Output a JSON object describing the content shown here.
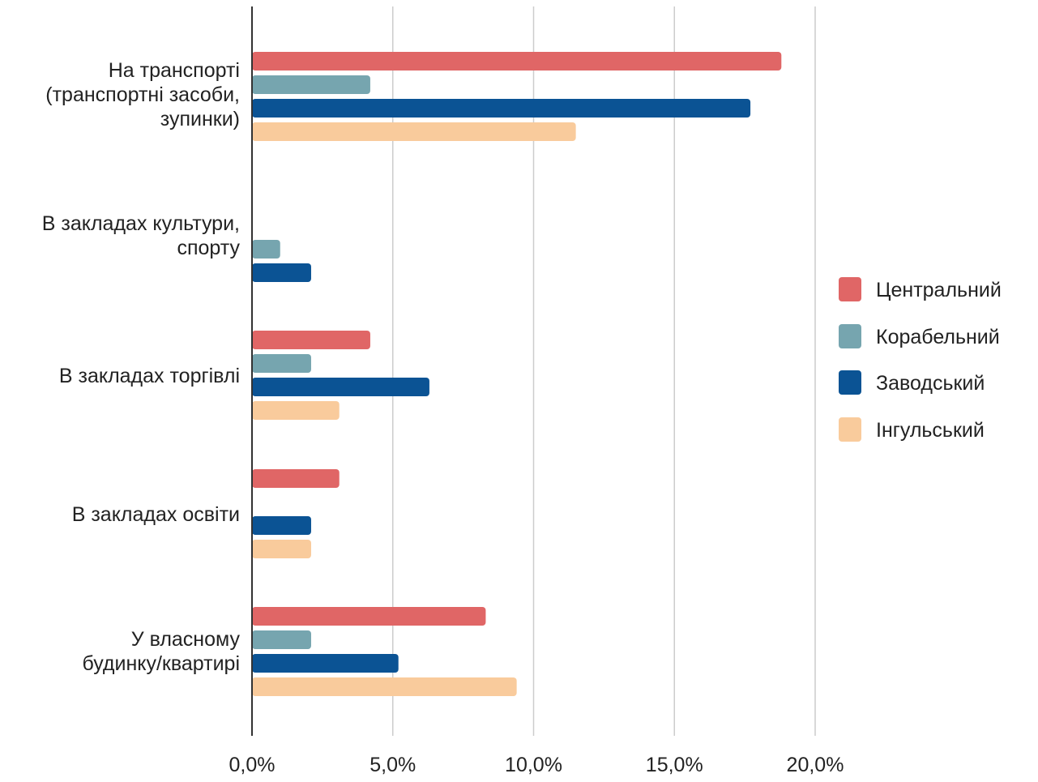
{
  "chart_data": {
    "type": "bar",
    "orientation": "horizontal",
    "categories": [
      "На транспорті\n(транспортні засоби,\nзупинки)",
      "В закладах культури,\nспорту",
      "В закладах торгівлі",
      "В закладах освіти",
      "У власному\nбудинку/квартирі"
    ],
    "series": [
      {
        "name": "Центральний",
        "color": "#e06666",
        "values": [
          18.8,
          0,
          4.2,
          3.1,
          8.3
        ]
      },
      {
        "name": "Корабельний",
        "color": "#76a5af",
        "values": [
          4.2,
          1.0,
          2.1,
          0,
          2.1
        ]
      },
      {
        "name": "Заводський",
        "color": "#0b5394",
        "values": [
          17.7,
          2.1,
          6.3,
          2.1,
          5.2
        ]
      },
      {
        "name": "Інгульський",
        "color": "#f9cb9c",
        "values": [
          11.5,
          0,
          3.1,
          2.1,
          9.4
        ]
      }
    ],
    "x_ticks": [
      "0,0%",
      "5,0%",
      "10,0%",
      "15,0%",
      "20,0%"
    ],
    "xlim": [
      0,
      20
    ],
    "grid": true,
    "legend_position": "right",
    "title": "",
    "xlabel": "",
    "ylabel": ""
  }
}
